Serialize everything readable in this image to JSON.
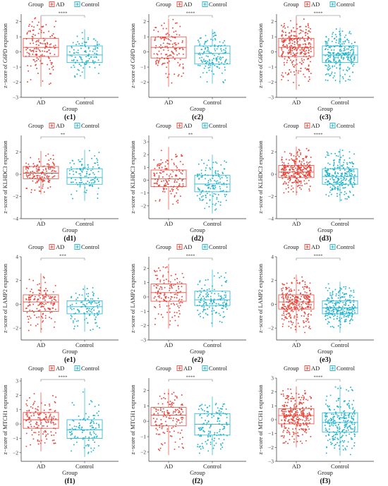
{
  "figure": {
    "group_label": "Group",
    "x_axis_label": "Group",
    "colors": {
      "AD": "#e8463a",
      "Control": "#1fb3cf"
    }
  },
  "chart_data": [
    {
      "panel": "(c1)",
      "type": "box",
      "ylabel": "z−score of G6PD expression",
      "ylim": [
        -3,
        2.5
      ],
      "yticks": [
        -3,
        -2,
        -1,
        0,
        1,
        2
      ],
      "categories": [
        "AD",
        "Control"
      ],
      "legend": [
        "AD",
        "Control"
      ],
      "significance": "****",
      "series": [
        {
          "name": "AD",
          "q1": -0.3,
          "median": 0.3,
          "q3": 0.9,
          "whisker_low": -2.3,
          "whisker_high": 2.3,
          "n": 150,
          "seed": 11
        },
        {
          "name": "Control",
          "q1": -0.7,
          "median": -0.2,
          "q3": 0.4,
          "whisker_low": -1.8,
          "whisker_high": 1.5,
          "n": 110,
          "seed": 12
        }
      ]
    },
    {
      "panel": "(c2)",
      "type": "box",
      "ylabel": "z−score of G6PD expression",
      "ylim": [
        -3,
        2.5
      ],
      "yticks": [
        -2,
        -1,
        0,
        1,
        2
      ],
      "categories": [
        "AD",
        "Control"
      ],
      "legend": [
        "AD",
        "Control"
      ],
      "significance": "****",
      "series": [
        {
          "name": "AD",
          "q1": -0.4,
          "median": 0.3,
          "q3": 1.0,
          "whisker_low": -2.3,
          "whisker_high": 2.2,
          "n": 140,
          "seed": 21
        },
        {
          "name": "Control",
          "q1": -0.8,
          "median": -0.1,
          "q3": 0.4,
          "whisker_low": -2.1,
          "whisker_high": 1.5,
          "n": 140,
          "seed": 22
        }
      ]
    },
    {
      "panel": "(c3)",
      "type": "box",
      "ylabel": "z−score of G6PD expression",
      "ylim": [
        -3,
        2.5
      ],
      "yticks": [
        -3,
        -2,
        -1,
        0,
        1,
        2
      ],
      "categories": [
        "AD",
        "Control"
      ],
      "legend": [
        "AD",
        "Control"
      ],
      "significance": "****",
      "series": [
        {
          "name": "AD",
          "q1": -0.3,
          "median": 0.3,
          "q3": 0.9,
          "whisker_low": -2.5,
          "whisker_high": 2.3,
          "n": 290,
          "seed": 31
        },
        {
          "name": "Control",
          "q1": -0.7,
          "median": -0.2,
          "q3": 0.4,
          "whisker_low": -2.1,
          "whisker_high": 1.6,
          "n": 250,
          "seed": 32
        }
      ]
    },
    {
      "panel": "(d1)",
      "type": "box",
      "ylabel": "z−score of KLHDC3 expression",
      "ylim": [
        -4,
        3.5
      ],
      "yticks": [
        -4,
        -2,
        0,
        2
      ],
      "categories": [
        "AD",
        "Control"
      ],
      "legend": [
        "AD",
        "Control"
      ],
      "significance": "**",
      "series": [
        {
          "name": "AD",
          "q1": -0.4,
          "median": 0.1,
          "q3": 0.7,
          "whisker_low": -1.8,
          "whisker_high": 2.1,
          "n": 150,
          "seed": 41
        },
        {
          "name": "Control",
          "q1": -0.9,
          "median": -0.3,
          "q3": 0.5,
          "whisker_low": -2.4,
          "whisker_high": 2.2,
          "n": 110,
          "seed": 42
        }
      ]
    },
    {
      "panel": "(d2)",
      "type": "box",
      "ylabel": "z−score of KLHDC3 expression",
      "ylim": [
        -3,
        3.5
      ],
      "yticks": [
        -2,
        -1,
        0,
        1,
        2,
        3
      ],
      "categories": [
        "AD",
        "Control"
      ],
      "legend": [
        "AD",
        "Control"
      ],
      "significance": "**",
      "series": [
        {
          "name": "AD",
          "q1": -0.5,
          "median": 0.1,
          "q3": 0.8,
          "whisker_low": -2.3,
          "whisker_high": 2.6,
          "n": 140,
          "seed": 51
        },
        {
          "name": "Control",
          "q1": -0.9,
          "median": -0.3,
          "q3": 0.4,
          "whisker_low": -2.6,
          "whisker_high": 2.0,
          "n": 140,
          "seed": 52
        }
      ]
    },
    {
      "panel": "(d3)",
      "type": "box",
      "ylabel": "z−score of KLHDC3 expression",
      "ylim": [
        -4,
        3.5
      ],
      "yticks": [
        -4,
        -2,
        0,
        2
      ],
      "categories": [
        "AD",
        "Control"
      ],
      "legend": [
        "AD",
        "Control"
      ],
      "significance": "****",
      "series": [
        {
          "name": "AD",
          "q1": -0.3,
          "median": 0.2,
          "q3": 0.8,
          "whisker_low": -1.9,
          "whisker_high": 2.5,
          "n": 290,
          "seed": 61
        },
        {
          "name": "Control",
          "q1": -0.9,
          "median": -0.2,
          "q3": 0.5,
          "whisker_low": -2.5,
          "whisker_high": 2.3,
          "n": 250,
          "seed": 62
        }
      ]
    },
    {
      "panel": "(e1)",
      "type": "box",
      "ylabel": "z−score of LAMP2 expression",
      "ylim": [
        -3,
        4
      ],
      "yticks": [
        -2,
        0,
        2,
        4
      ],
      "categories": [
        "AD",
        "Control"
      ],
      "legend": [
        "AD",
        "Control"
      ],
      "significance": "***",
      "series": [
        {
          "name": "AD",
          "q1": -0.6,
          "median": 0.2,
          "q3": 0.8,
          "whisker_low": -2.4,
          "whisker_high": 2.6,
          "n": 150,
          "seed": 71
        },
        {
          "name": "Control",
          "q1": -0.8,
          "median": -0.2,
          "q3": 0.3,
          "whisker_low": -2.3,
          "whisker_high": 1.6,
          "n": 110,
          "seed": 72
        }
      ]
    },
    {
      "panel": "(e2)",
      "type": "box",
      "ylabel": "z−score of LAMP2 expression",
      "ylim": [
        -3,
        2.8
      ],
      "yticks": [
        -3,
        -2,
        -1,
        0,
        1,
        2
      ],
      "categories": [
        "AD",
        "Control"
      ],
      "legend": [
        "AD",
        "Control"
      ],
      "significance": "****",
      "series": [
        {
          "name": "AD",
          "q1": -0.3,
          "median": 0.3,
          "q3": 0.9,
          "whisker_low": -2.2,
          "whisker_high": 2.3,
          "n": 140,
          "seed": 81
        },
        {
          "name": "Control",
          "q1": -0.6,
          "median": -0.2,
          "q3": 0.4,
          "whisker_low": -2.1,
          "whisker_high": 1.9,
          "n": 140,
          "seed": 82
        }
      ]
    },
    {
      "panel": "(e3)",
      "type": "box",
      "ylabel": "z−score of LAMP2 expression",
      "ylim": [
        -3,
        4
      ],
      "yticks": [
        -2,
        0,
        2,
        4
      ],
      "categories": [
        "AD",
        "Control"
      ],
      "legend": [
        "AD",
        "Control"
      ],
      "significance": "****",
      "series": [
        {
          "name": "AD",
          "q1": -0.4,
          "median": 0.2,
          "q3": 0.8,
          "whisker_low": -2.4,
          "whisker_high": 2.5,
          "n": 290,
          "seed": 91
        },
        {
          "name": "Control",
          "q1": -0.8,
          "median": -0.3,
          "q3": 0.3,
          "whisker_low": -2.4,
          "whisker_high": 1.9,
          "n": 250,
          "seed": 92
        }
      ]
    },
    {
      "panel": "(f1)",
      "type": "box",
      "ylabel": "z−score of MTCH1 expression",
      "ylim": [
        -2.6,
        3.2
      ],
      "yticks": [
        -2,
        -1,
        0,
        1,
        2,
        3
      ],
      "categories": [
        "AD",
        "Control"
      ],
      "legend": [
        "AD",
        "Control"
      ],
      "significance": "****",
      "series": [
        {
          "name": "AD",
          "q1": -0.3,
          "median": 0.3,
          "q3": 0.8,
          "whisker_low": -1.9,
          "whisker_high": 2.2,
          "n": 150,
          "seed": 101
        },
        {
          "name": "Control",
          "q1": -1.0,
          "median": -0.4,
          "q3": 0.3,
          "whisker_low": -2.3,
          "whisker_high": 2.5,
          "n": 110,
          "seed": 102
        }
      ]
    },
    {
      "panel": "(f2)",
      "type": "box",
      "ylabel": "z−score of MTCH1 expression",
      "ylim": [
        -2.6,
        2.8
      ],
      "yticks": [
        -2,
        -1,
        0,
        1,
        2
      ],
      "categories": [
        "AD",
        "Control"
      ],
      "legend": [
        "AD",
        "Control"
      ],
      "significance": "****",
      "series": [
        {
          "name": "AD",
          "q1": -0.3,
          "median": 0.4,
          "q3": 0.9,
          "whisker_low": -2.2,
          "whisker_high": 2.1,
          "n": 140,
          "seed": 111
        },
        {
          "name": "Control",
          "q1": -0.9,
          "median": -0.2,
          "q3": 0.5,
          "whisker_low": -2.2,
          "whisker_high": 1.6,
          "n": 140,
          "seed": 112
        }
      ]
    },
    {
      "panel": "(f3)",
      "type": "box",
      "ylabel": "z−score of MTCH1 expression",
      "ylim": [
        -3,
        3
      ],
      "yticks": [
        -3,
        -2,
        -1,
        0,
        1,
        2,
        3
      ],
      "categories": [
        "AD",
        "Control"
      ],
      "legend": [
        "AD",
        "Control"
      ],
      "significance": "****",
      "series": [
        {
          "name": "AD",
          "q1": -0.3,
          "median": 0.3,
          "q3": 0.8,
          "whisker_low": -2.0,
          "whisker_high": 2.4,
          "n": 290,
          "seed": 121
        },
        {
          "name": "Control",
          "q1": -0.9,
          "median": -0.2,
          "q3": 0.5,
          "whisker_low": -2.6,
          "whisker_high": 2.5,
          "n": 250,
          "seed": 122
        }
      ]
    }
  ]
}
